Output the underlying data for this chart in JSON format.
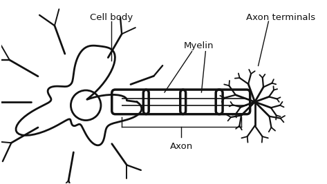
{
  "bg_color": "#ffffff",
  "label_cell_body": "Cell body",
  "label_axon_terminals": "Axon terminals",
  "label_myelin": "Myelin",
  "label_axon": "Axon",
  "lw": 2.0,
  "line_color": "#111111",
  "text_color": "#111111",
  "font_size": 9.5
}
